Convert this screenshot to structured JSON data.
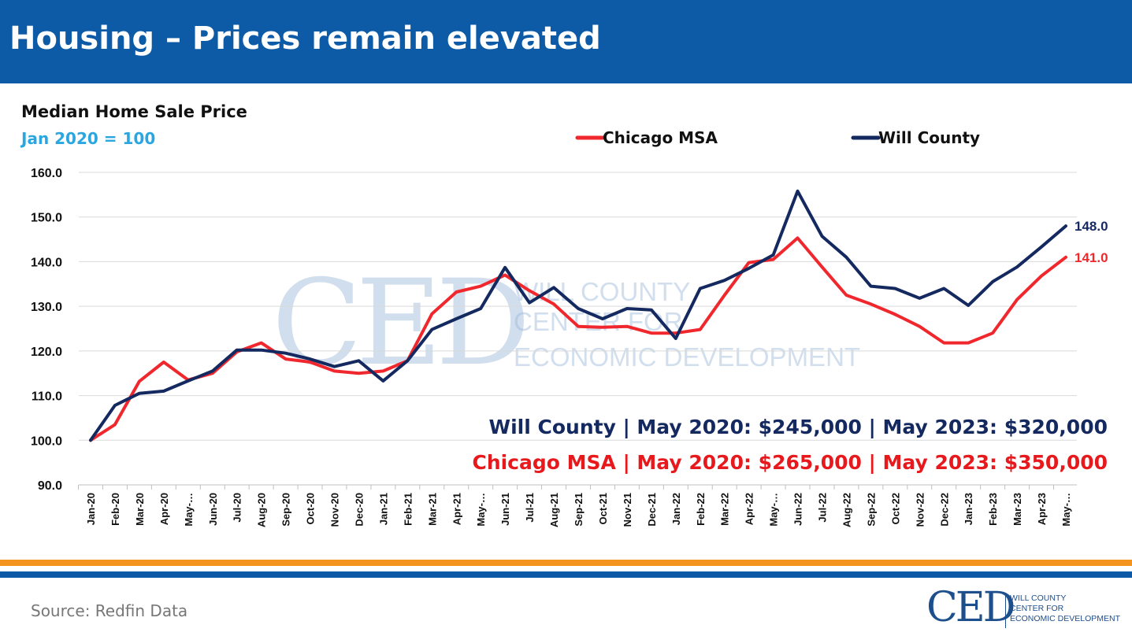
{
  "header": {
    "title": "Housing – Prices remain elevated"
  },
  "chart_data": {
    "type": "line",
    "title": "Median Home Sale Price",
    "subtitle": "Jan 2020 = 100",
    "ylim": [
      90,
      160
    ],
    "yticks": [
      "90.0",
      "100.0",
      "110.0",
      "120.0",
      "130.0",
      "140.0",
      "150.0",
      "160.0"
    ],
    "grid": true,
    "legend_position": "top",
    "categories": [
      "Jan-20",
      "Feb-20",
      "Mar-20",
      "Apr-20",
      "May-…",
      "Jun-20",
      "Jul-20",
      "Aug-20",
      "Sep-20",
      "Oct-20",
      "Nov-20",
      "Dec-20",
      "Jan-21",
      "Feb-21",
      "Mar-21",
      "Apr-21",
      "May-…",
      "Jun-21",
      "Jul-21",
      "Aug-21",
      "Sep-21",
      "Oct-21",
      "Nov-21",
      "Dec-21",
      "Jan-22",
      "Feb-22",
      "Mar-22",
      "Apr-22",
      "May-…",
      "Jun-22",
      "Jul-22",
      "Aug-22",
      "Sep-22",
      "Oct-22",
      "Nov-22",
      "Dec-22",
      "Jan-23",
      "Feb-23",
      "Mar-23",
      "Apr-23",
      "May-…"
    ],
    "series": [
      {
        "name": "Chicago MSA",
        "color": "#f0282d",
        "values": [
          100,
          103.5,
          113.2,
          117.5,
          113.5,
          115.0,
          119.8,
          121.8,
          118.2,
          117.5,
          115.5,
          115.0,
          115.5,
          117.8,
          128.3,
          133.2,
          134.5,
          137.0,
          133.5,
          130.5,
          125.5,
          125.3,
          125.5,
          124.0,
          124.0,
          124.8,
          132.5,
          139.8,
          140.5,
          145.3,
          138.8,
          132.5,
          130.5,
          128.2,
          125.5,
          121.8,
          121.8,
          124.0,
          131.5,
          136.8,
          141.0
        ],
        "end_label": "141.0"
      },
      {
        "name": "Will County",
        "color": "#14295f",
        "values": [
          100,
          107.8,
          110.5,
          111.0,
          113.3,
          115.5,
          120.2,
          120.2,
          119.5,
          118.2,
          116.5,
          117.8,
          113.3,
          117.8,
          124.8,
          127.2,
          129.5,
          138.7,
          130.8,
          134.2,
          129.5,
          127.2,
          129.5,
          129.2,
          122.8,
          134.0,
          135.8,
          138.5,
          141.5,
          155.8,
          145.7,
          141.0,
          134.5,
          134.0,
          131.8,
          134.0,
          130.2,
          135.5,
          138.8,
          143.3,
          148.0
        ],
        "end_label": "148.0"
      }
    ]
  },
  "summary": {
    "will_county": "Will County | May 2020: $245,000 | May 2023: $320,000",
    "chicago_msa": "Chicago MSA | May 2020: $265,000 | May 2023: $350,000"
  },
  "watermark": {
    "letters": "CED",
    "line1": "WILL COUNTY",
    "line2": "CENTER FOR",
    "line3": "ECONOMIC DEVELOPMENT"
  },
  "footer": {
    "source": "Source: Redfin Data",
    "logo_letters": "CED",
    "logo_line1": "WILL COUNTY",
    "logo_line2": "CENTER FOR",
    "logo_line3": "ECONOMIC DEVELOPMENT"
  },
  "colors": {
    "header_bg": "#0d5aa7",
    "accent_orange": "#f3941e",
    "subtitle_blue": "#2aa6e0",
    "will_county": "#14295f",
    "chicago_msa": "#e8191d"
  }
}
